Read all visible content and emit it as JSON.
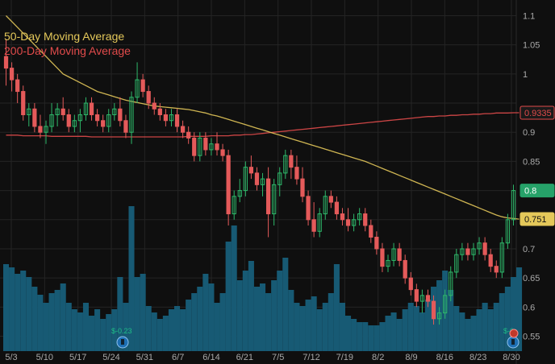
{
  "chart_data": {
    "type": "candlestick",
    "x_tick_labels": [
      "5/3",
      "5/10",
      "5/17",
      "5/24",
      "5/31",
      "6/7",
      "6/14",
      "6/21",
      "7/5",
      "7/12",
      "7/19",
      "8/2",
      "8/9",
      "8/16",
      "8/23",
      "8/30"
    ],
    "y_ticks": [
      0.55,
      0.6,
      0.65,
      0.7,
      0.75,
      0.8,
      0.85,
      0.9,
      0.95,
      1,
      1.05,
      1.1
    ],
    "y_tick_labels": [
      "0.55",
      "0.6",
      "0.65",
      "0.7",
      "",
      "",
      "0.85",
      "0.9",
      "",
      "1",
      "1.05",
      "1.1"
    ],
    "ylim": [
      0.53,
      1.12
    ],
    "grid": true,
    "legend_position": "top-left",
    "legend": [
      {
        "label": "50-Day Moving Average",
        "color": "#e4c85a"
      },
      {
        "label": "200-Day Moving Average",
        "color": "#e14b4b"
      }
    ],
    "price_badges": [
      {
        "label": "0.9335",
        "value": 0.9335,
        "color": "#e14b4b",
        "text_color": "#e14b4b",
        "bg": "#1a1a1a"
      },
      {
        "label": "0.8",
        "value": 0.8,
        "color": "#26a269",
        "text_color": "#ffffff",
        "bg": "#26a269"
      },
      {
        "label": "0.751",
        "value": 0.751,
        "color": "#e4c85a",
        "text_color": "#111111",
        "bg": "#e4c85a"
      }
    ],
    "event_labels": [
      {
        "text": "$-0.23",
        "date": "5/27"
      },
      {
        "text": "$-0.",
        "date": "8/30"
      }
    ],
    "ohlc": [
      [
        1.03,
        1.06,
        0.98,
        1.01
      ],
      [
        1.01,
        1.02,
        0.97,
        0.99
      ],
      [
        0.99,
        1.0,
        0.95,
        0.97
      ],
      [
        0.97,
        0.98,
        0.92,
        0.93
      ],
      [
        0.93,
        0.95,
        0.91,
        0.94
      ],
      [
        0.94,
        0.95,
        0.9,
        0.91
      ],
      [
        0.91,
        0.93,
        0.89,
        0.9
      ],
      [
        0.9,
        0.92,
        0.88,
        0.91
      ],
      [
        0.91,
        0.95,
        0.9,
        0.93
      ],
      [
        0.93,
        0.95,
        0.91,
        0.94
      ],
      [
        0.94,
        0.96,
        0.92,
        0.93
      ],
      [
        0.93,
        0.94,
        0.9,
        0.91
      ],
      [
        0.91,
        0.93,
        0.9,
        0.92
      ],
      [
        0.92,
        0.94,
        0.9,
        0.93
      ],
      [
        0.93,
        0.96,
        0.92,
        0.95
      ],
      [
        0.95,
        0.96,
        0.92,
        0.93
      ],
      [
        0.93,
        0.94,
        0.91,
        0.92
      ],
      [
        0.92,
        0.93,
        0.9,
        0.91
      ],
      [
        0.91,
        0.94,
        0.9,
        0.93
      ],
      [
        0.93,
        0.95,
        0.92,
        0.94
      ],
      [
        0.94,
        0.96,
        0.91,
        0.92
      ],
      [
        0.92,
        0.93,
        0.89,
        0.9
      ],
      [
        0.9,
        0.97,
        0.88,
        0.96
      ],
      [
        0.96,
        1.02,
        0.95,
        0.99
      ],
      [
        0.99,
        1.0,
        0.96,
        0.97
      ],
      [
        0.97,
        0.98,
        0.94,
        0.95
      ],
      [
        0.95,
        0.96,
        0.93,
        0.94
      ],
      [
        0.94,
        0.95,
        0.92,
        0.93
      ],
      [
        0.93,
        0.94,
        0.91,
        0.92
      ],
      [
        0.92,
        0.94,
        0.91,
        0.93
      ],
      [
        0.93,
        0.94,
        0.9,
        0.91
      ],
      [
        0.91,
        0.92,
        0.89,
        0.9
      ],
      [
        0.9,
        0.91,
        0.88,
        0.89
      ],
      [
        0.89,
        0.9,
        0.85,
        0.86
      ],
      [
        0.86,
        0.9,
        0.85,
        0.89
      ],
      [
        0.89,
        0.9,
        0.86,
        0.87
      ],
      [
        0.87,
        0.89,
        0.86,
        0.88
      ],
      [
        0.88,
        0.9,
        0.86,
        0.87
      ],
      [
        0.87,
        0.88,
        0.85,
        0.86
      ],
      [
        0.86,
        0.87,
        0.74,
        0.76
      ],
      [
        0.76,
        0.8,
        0.75,
        0.79
      ],
      [
        0.79,
        0.82,
        0.78,
        0.8
      ],
      [
        0.8,
        0.85,
        0.79,
        0.84
      ],
      [
        0.84,
        0.86,
        0.82,
        0.83
      ],
      [
        0.83,
        0.84,
        0.8,
        0.81
      ],
      [
        0.81,
        0.83,
        0.79,
        0.82
      ],
      [
        0.82,
        0.84,
        0.72,
        0.76
      ],
      [
        0.76,
        0.82,
        0.74,
        0.81
      ],
      [
        0.81,
        0.84,
        0.79,
        0.83
      ],
      [
        0.83,
        0.87,
        0.82,
        0.86
      ],
      [
        0.86,
        0.87,
        0.82,
        0.84
      ],
      [
        0.84,
        0.86,
        0.81,
        0.82
      ],
      [
        0.82,
        0.84,
        0.78,
        0.79
      ],
      [
        0.79,
        0.8,
        0.74,
        0.75
      ],
      [
        0.75,
        0.78,
        0.72,
        0.73
      ],
      [
        0.73,
        0.77,
        0.72,
        0.76
      ],
      [
        0.76,
        0.8,
        0.75,
        0.79
      ],
      [
        0.79,
        0.8,
        0.77,
        0.78
      ],
      [
        0.78,
        0.79,
        0.75,
        0.76
      ],
      [
        0.76,
        0.77,
        0.74,
        0.75
      ],
      [
        0.75,
        0.77,
        0.73,
        0.74
      ],
      [
        0.74,
        0.76,
        0.73,
        0.75
      ],
      [
        0.75,
        0.77,
        0.74,
        0.76
      ],
      [
        0.76,
        0.77,
        0.73,
        0.74
      ],
      [
        0.74,
        0.75,
        0.71,
        0.72
      ],
      [
        0.72,
        0.73,
        0.69,
        0.7
      ],
      [
        0.7,
        0.71,
        0.66,
        0.67
      ],
      [
        0.67,
        0.69,
        0.66,
        0.68
      ],
      [
        0.68,
        0.71,
        0.67,
        0.7
      ],
      [
        0.7,
        0.71,
        0.67,
        0.68
      ],
      [
        0.68,
        0.69,
        0.64,
        0.65
      ],
      [
        0.65,
        0.66,
        0.62,
        0.63
      ],
      [
        0.63,
        0.64,
        0.6,
        0.61
      ],
      [
        0.61,
        0.63,
        0.59,
        0.62
      ],
      [
        0.62,
        0.63,
        0.6,
        0.61
      ],
      [
        0.61,
        0.62,
        0.57,
        0.58
      ],
      [
        0.58,
        0.6,
        0.57,
        0.59
      ],
      [
        0.59,
        0.63,
        0.58,
        0.62
      ],
      [
        0.62,
        0.67,
        0.61,
        0.66
      ],
      [
        0.66,
        0.7,
        0.65,
        0.69
      ],
      [
        0.69,
        0.71,
        0.68,
        0.7
      ],
      [
        0.7,
        0.71,
        0.68,
        0.69
      ],
      [
        0.69,
        0.71,
        0.68,
        0.7
      ],
      [
        0.7,
        0.72,
        0.69,
        0.71
      ],
      [
        0.71,
        0.72,
        0.68,
        0.69
      ],
      [
        0.69,
        0.7,
        0.66,
        0.67
      ],
      [
        0.67,
        0.68,
        0.65,
        0.66
      ],
      [
        0.66,
        0.72,
        0.65,
        0.71
      ],
      [
        0.71,
        0.76,
        0.7,
        0.75
      ],
      [
        0.75,
        0.81,
        0.74,
        0.8
      ]
    ],
    "volume": [
      0.54,
      0.52,
      0.48,
      0.5,
      0.46,
      0.4,
      0.35,
      0.3,
      0.36,
      0.38,
      0.42,
      0.3,
      0.26,
      0.24,
      0.3,
      0.22,
      0.26,
      0.2,
      0.23,
      0.26,
      0.46,
      0.3,
      0.9,
      0.46,
      0.48,
      0.28,
      0.24,
      0.2,
      0.22,
      0.26,
      0.28,
      0.26,
      0.32,
      0.36,
      0.4,
      0.48,
      0.42,
      0.3,
      0.36,
      0.68,
      0.78,
      0.44,
      0.5,
      0.56,
      0.4,
      0.42,
      0.36,
      0.44,
      0.5,
      0.58,
      0.38,
      0.3,
      0.28,
      0.32,
      0.34,
      0.26,
      0.3,
      0.36,
      0.54,
      0.3,
      0.22,
      0.2,
      0.18,
      0.18,
      0.16,
      0.16,
      0.18,
      0.22,
      0.24,
      0.2,
      0.26,
      0.3,
      0.28,
      0.24,
      0.32,
      0.4,
      0.44,
      0.5,
      0.38,
      0.28,
      0.24,
      0.2,
      0.22,
      0.26,
      0.3,
      0.26,
      0.3,
      0.36,
      0.4,
      0.46,
      0.52
    ],
    "ma50": [
      1.1,
      1.09,
      1.08,
      1.07,
      1.06,
      1.05,
      1.04,
      1.03,
      1.02,
      1.01,
      1.0,
      0.995,
      0.99,
      0.985,
      0.98,
      0.975,
      0.97,
      0.967,
      0.964,
      0.961,
      0.958,
      0.955,
      0.953,
      0.951,
      0.949,
      0.947,
      0.945,
      0.944,
      0.943,
      0.942,
      0.941,
      0.94,
      0.939,
      0.937,
      0.935,
      0.933,
      0.93,
      0.928,
      0.925,
      0.922,
      0.919,
      0.916,
      0.913,
      0.91,
      0.907,
      0.904,
      0.901,
      0.898,
      0.895,
      0.892,
      0.889,
      0.886,
      0.883,
      0.88,
      0.877,
      0.874,
      0.871,
      0.868,
      0.865,
      0.862,
      0.859,
      0.856,
      0.853,
      0.85,
      0.846,
      0.842,
      0.838,
      0.834,
      0.83,
      0.826,
      0.822,
      0.818,
      0.814,
      0.81,
      0.806,
      0.802,
      0.798,
      0.794,
      0.79,
      0.786,
      0.782,
      0.778,
      0.774,
      0.77,
      0.766,
      0.762,
      0.758,
      0.755,
      0.753,
      0.752,
      0.751
    ],
    "ma200": [
      0.895,
      0.895,
      0.895,
      0.894,
      0.894,
      0.894,
      0.894,
      0.894,
      0.893,
      0.893,
      0.893,
      0.893,
      0.893,
      0.893,
      0.893,
      0.892,
      0.892,
      0.892,
      0.892,
      0.892,
      0.892,
      0.892,
      0.892,
      0.892,
      0.892,
      0.892,
      0.892,
      0.892,
      0.892,
      0.892,
      0.892,
      0.892,
      0.893,
      0.893,
      0.893,
      0.893,
      0.894,
      0.894,
      0.894,
      0.894,
      0.895,
      0.895,
      0.896,
      0.896,
      0.897,
      0.898,
      0.899,
      0.9,
      0.901,
      0.902,
      0.903,
      0.904,
      0.905,
      0.906,
      0.907,
      0.908,
      0.909,
      0.91,
      0.911,
      0.912,
      0.913,
      0.914,
      0.915,
      0.916,
      0.917,
      0.918,
      0.919,
      0.92,
      0.921,
      0.922,
      0.923,
      0.924,
      0.925,
      0.926,
      0.927,
      0.927,
      0.928,
      0.928,
      0.929,
      0.929,
      0.93,
      0.93,
      0.931,
      0.931,
      0.932,
      0.932,
      0.933,
      0.933,
      0.933,
      0.9335,
      0.9335
    ]
  }
}
